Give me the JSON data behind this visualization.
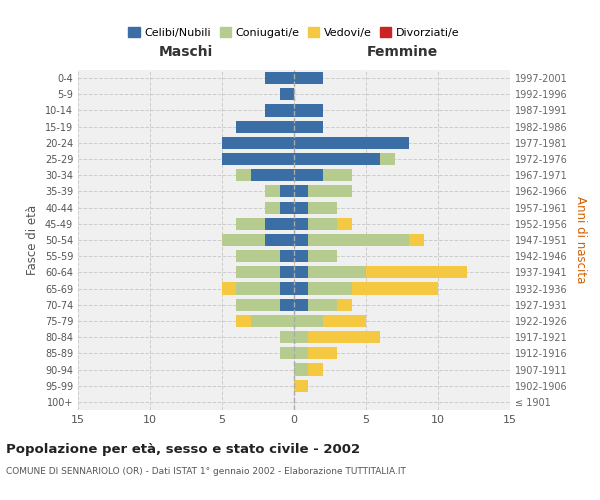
{
  "age_groups": [
    "100+",
    "95-99",
    "90-94",
    "85-89",
    "80-84",
    "75-79",
    "70-74",
    "65-69",
    "60-64",
    "55-59",
    "50-54",
    "45-49",
    "40-44",
    "35-39",
    "30-34",
    "25-29",
    "20-24",
    "15-19",
    "10-14",
    "5-9",
    "0-4"
  ],
  "birth_years": [
    "≤ 1901",
    "1902-1906",
    "1907-1911",
    "1912-1916",
    "1917-1921",
    "1922-1926",
    "1927-1931",
    "1932-1936",
    "1937-1941",
    "1942-1946",
    "1947-1951",
    "1952-1956",
    "1957-1961",
    "1962-1966",
    "1967-1971",
    "1972-1976",
    "1977-1981",
    "1982-1986",
    "1987-1991",
    "1992-1996",
    "1997-2001"
  ],
  "colors": {
    "celibi": "#3a6ea5",
    "coniugati": "#b5cc8e",
    "vedovi": "#f5c842",
    "divorziati": "#cc2222"
  },
  "maschi": {
    "celibi": [
      0,
      0,
      0,
      0,
      0,
      0,
      1,
      1,
      1,
      1,
      2,
      2,
      1,
      1,
      3,
      5,
      5,
      4,
      2,
      1,
      2
    ],
    "coniugati": [
      0,
      0,
      0,
      1,
      1,
      3,
      3,
      3,
      3,
      3,
      3,
      2,
      1,
      1,
      1,
      0,
      0,
      0,
      0,
      0,
      0
    ],
    "vedovi": [
      0,
      0,
      0,
      0,
      0,
      1,
      0,
      1,
      0,
      0,
      0,
      0,
      0,
      0,
      0,
      0,
      0,
      0,
      0,
      0,
      0
    ],
    "divorziati": [
      0,
      0,
      0,
      0,
      0,
      0,
      0,
      0,
      0,
      0,
      0,
      0,
      0,
      0,
      0,
      0,
      0,
      0,
      0,
      0,
      0
    ]
  },
  "femmine": {
    "celibi": [
      0,
      0,
      0,
      0,
      0,
      0,
      1,
      1,
      1,
      1,
      1,
      1,
      1,
      1,
      2,
      6,
      8,
      2,
      2,
      0,
      2
    ],
    "coniugati": [
      0,
      0,
      1,
      1,
      1,
      2,
      2,
      3,
      4,
      2,
      7,
      2,
      2,
      3,
      2,
      1,
      0,
      0,
      0,
      0,
      0
    ],
    "vedovi": [
      0,
      1,
      1,
      2,
      5,
      3,
      1,
      6,
      7,
      0,
      1,
      1,
      0,
      0,
      0,
      0,
      0,
      0,
      0,
      0,
      0
    ],
    "divorziati": [
      0,
      0,
      0,
      0,
      0,
      0,
      0,
      0,
      0,
      0,
      0,
      0,
      0,
      0,
      0,
      0,
      0,
      0,
      0,
      0,
      0
    ]
  },
  "title": "Popolazione per età, sesso e stato civile - 2002",
  "subtitle": "COMUNE DI SENNARIOLO (OR) - Dati ISTAT 1° gennaio 2002 - Elaborazione TUTTITALIA.IT",
  "xlabel_maschi": "Maschi",
  "xlabel_femmine": "Femmine",
  "ylabel_left": "Fasce di età",
  "ylabel_right": "Anni di nascita",
  "xlim": 15,
  "legend_labels": [
    "Celibi/Nubili",
    "Coniugati/e",
    "Vedovi/e",
    "Divorziati/e"
  ]
}
